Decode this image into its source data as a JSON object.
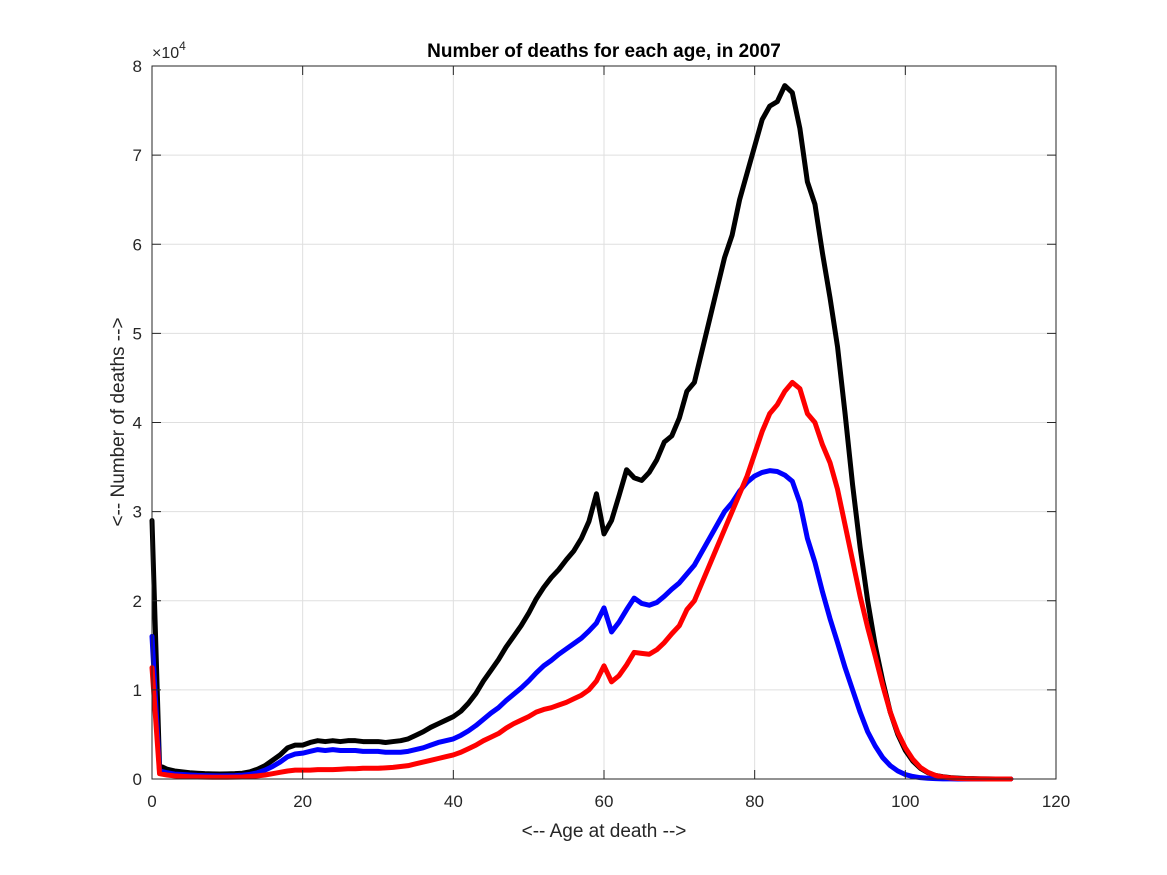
{
  "chart_data": {
    "type": "line",
    "title": "Number of deaths for each age, in 2007",
    "xlabel": "<-- Age at death -->",
    "ylabel": "<-- Number of deaths -->",
    "y_exponent_label": "×10",
    "y_exponent_power": "4",
    "xlim": [
      0,
      120
    ],
    "ylim": [
      0,
      80000
    ],
    "grid": true,
    "x_ticks": [
      0,
      20,
      40,
      60,
      80,
      100,
      120
    ],
    "x_tick_labels": [
      "0",
      "20",
      "40",
      "60",
      "80",
      "100",
      "120"
    ],
    "y_ticks": [
      0,
      10000,
      20000,
      30000,
      40000,
      50000,
      60000,
      70000,
      80000
    ],
    "y_tick_labels": [
      "0",
      "1",
      "2",
      "3",
      "4",
      "5",
      "6",
      "7",
      "8"
    ],
    "x": [
      0,
      1,
      2,
      3,
      4,
      5,
      6,
      7,
      8,
      9,
      10,
      11,
      12,
      13,
      14,
      15,
      16,
      17,
      18,
      19,
      20,
      21,
      22,
      23,
      24,
      25,
      26,
      27,
      28,
      29,
      30,
      31,
      32,
      33,
      34,
      35,
      36,
      37,
      38,
      39,
      40,
      41,
      42,
      43,
      44,
      45,
      46,
      47,
      48,
      49,
      50,
      51,
      52,
      53,
      54,
      55,
      56,
      57,
      58,
      59,
      60,
      61,
      62,
      63,
      64,
      65,
      66,
      67,
      68,
      69,
      70,
      71,
      72,
      73,
      74,
      75,
      76,
      77,
      78,
      79,
      80,
      81,
      82,
      83,
      84,
      85,
      86,
      87,
      88,
      89,
      90,
      91,
      92,
      93,
      94,
      95,
      96,
      97,
      98,
      99,
      100,
      101,
      102,
      103,
      104,
      105,
      106,
      107,
      108,
      109,
      110,
      111,
      112,
      113,
      114
    ],
    "series": [
      {
        "color": "#000000",
        "values": [
          29000,
          1500,
          1100,
          900,
          800,
          700,
          650,
          600,
          580,
          560,
          580,
          600,
          650,
          800,
          1100,
          1500,
          2100,
          2700,
          3500,
          3800,
          3800,
          4100,
          4300,
          4200,
          4300,
          4200,
          4300,
          4300,
          4200,
          4200,
          4200,
          4100,
          4200,
          4300,
          4500,
          4900,
          5300,
          5800,
          6200,
          6600,
          7000,
          7600,
          8500,
          9600,
          11000,
          12200,
          13400,
          14800,
          16000,
          17200,
          18600,
          20200,
          21500,
          22600,
          23500,
          24600,
          25600,
          27000,
          28900,
          32000,
          27500,
          29000,
          31800,
          34700,
          33800,
          33500,
          34400,
          35800,
          37800,
          38500,
          40500,
          43500,
          44500,
          48000,
          51500,
          55000,
          58500,
          61000,
          65000,
          68000,
          71000,
          74000,
          75500,
          76000,
          77800,
          77000,
          73000,
          67000,
          64500,
          59000,
          54000,
          48500,
          41000,
          33000,
          26000,
          20000,
          15000,
          11000,
          7500,
          5000,
          3200,
          2000,
          1200,
          700,
          400,
          250,
          150,
          100,
          60,
          40,
          20,
          10,
          5,
          3,
          2
        ]
      },
      {
        "color": "#0000ff",
        "values": [
          16000,
          900,
          700,
          550,
          500,
          450,
          400,
          380,
          360,
          350,
          360,
          380,
          420,
          520,
          700,
          1000,
          1400,
          1900,
          2500,
          2800,
          2900,
          3100,
          3300,
          3200,
          3300,
          3200,
          3200,
          3200,
          3100,
          3100,
          3100,
          3000,
          3000,
          3000,
          3100,
          3300,
          3500,
          3800,
          4100,
          4300,
          4500,
          4900,
          5400,
          6000,
          6700,
          7400,
          8000,
          8800,
          9500,
          10200,
          11000,
          11900,
          12700,
          13300,
          14000,
          14600,
          15200,
          15800,
          16600,
          17500,
          19200,
          16500,
          17600,
          19000,
          20300,
          19700,
          19500,
          19800,
          20500,
          21300,
          22000,
          23000,
          24000,
          25500,
          27000,
          28500,
          30000,
          31000,
          32300,
          33300,
          34000,
          34400,
          34600,
          34500,
          34100,
          33400,
          31000,
          27000,
          24300,
          21000,
          18000,
          15300,
          12500,
          10000,
          7500,
          5300,
          3700,
          2400,
          1500,
          900,
          500,
          280,
          150,
          80,
          40,
          20,
          10,
          5,
          3,
          2,
          1,
          0,
          0,
          0,
          0
        ]
      },
      {
        "color": "#ff0000",
        "values": [
          12500,
          600,
          450,
          350,
          300,
          250,
          230,
          210,
          200,
          190,
          200,
          210,
          230,
          280,
          350,
          450,
          600,
          750,
          900,
          1000,
          1000,
          1000,
          1050,
          1050,
          1050,
          1100,
          1150,
          1150,
          1200,
          1200,
          1200,
          1250,
          1300,
          1400,
          1500,
          1700,
          1900,
          2100,
          2300,
          2500,
          2700,
          3000,
          3400,
          3800,
          4300,
          4700,
          5100,
          5700,
          6200,
          6600,
          7000,
          7500,
          7800,
          8000,
          8300,
          8600,
          9000,
          9400,
          10000,
          11000,
          12700,
          10900,
          11600,
          12800,
          14200,
          14100,
          14000,
          14500,
          15300,
          16300,
          17200,
          19000,
          20000,
          22000,
          24000,
          26000,
          28000,
          30000,
          32000,
          34000,
          36500,
          39000,
          41000,
          42000,
          43500,
          44500,
          43800,
          41000,
          40000,
          37500,
          35500,
          32500,
          28500,
          24500,
          20500,
          17000,
          13800,
          10500,
          7500,
          5200,
          3500,
          2200,
          1300,
          750,
          400,
          220,
          120,
          60,
          30,
          15,
          8,
          4,
          2,
          1,
          0
        ]
      }
    ]
  }
}
